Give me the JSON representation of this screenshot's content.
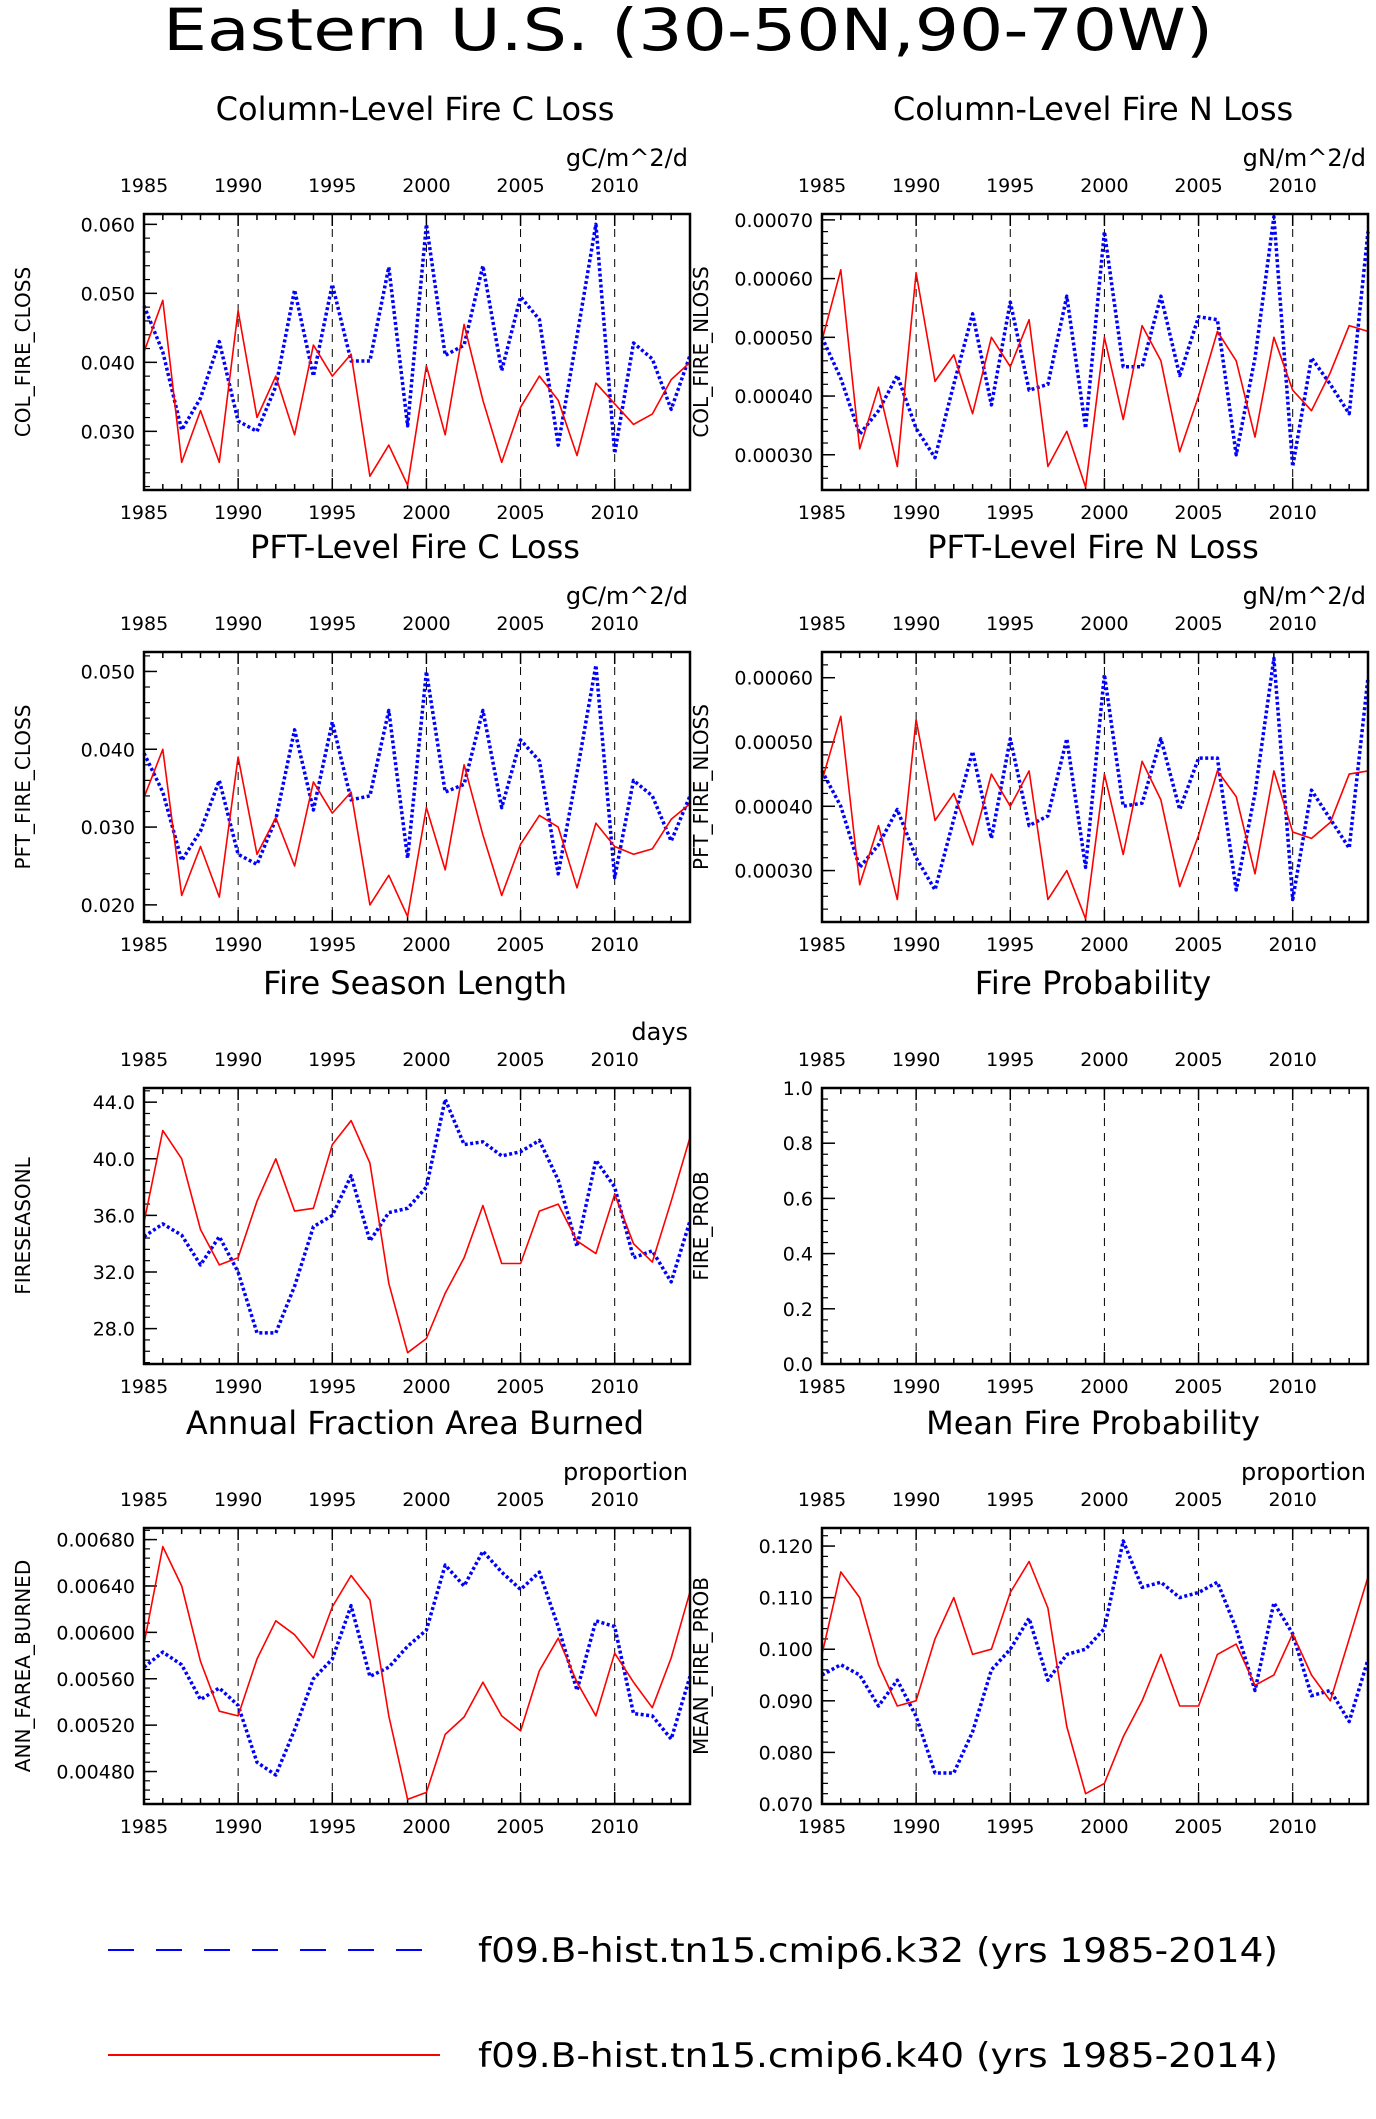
{
  "figure_title": "Eastern U.S. (30-50N,90-70W)",
  "colors": {
    "k32": "#0000ff",
    "k40": "#ff0000",
    "axis": "#000000"
  },
  "legend": [
    {
      "key": "k32",
      "label": "f09.B-hist.tn15.cmip6.k32 (yrs 1985-2014)",
      "style": "dashed"
    },
    {
      "key": "k40",
      "label": "f09.B-hist.tn15.cmip6.k40 (yrs 1985-2014)",
      "style": "solid"
    }
  ],
  "chart_data": [
    {
      "id": "col_fire_closs",
      "type": "line",
      "title": "Column-Level Fire C Loss",
      "units": "gC/m^2/d",
      "ylabel": "COL_FIRE_CLOSS",
      "xlim": [
        1985,
        2014
      ],
      "ylim": [
        0.0215,
        0.0615
      ],
      "yticks": [
        0.03,
        0.04,
        0.05,
        0.06
      ],
      "ytick_labels": [
        "0.030",
        "0.040",
        "0.050",
        "0.060"
      ],
      "xticks": [
        1985,
        1990,
        1995,
        2000,
        2005,
        2010
      ],
      "series": [
        {
          "key": "k32",
          "values": [
            0.0482,
            0.0415,
            0.0302,
            0.0348,
            0.043,
            0.0315,
            0.03,
            0.0365,
            0.0505,
            0.038,
            0.0513,
            0.0402,
            0.0402,
            0.0538,
            0.0308,
            0.06,
            0.041,
            0.0425,
            0.054,
            0.0388,
            0.0495,
            0.0462,
            0.028,
            0.0438,
            0.06,
            0.0268,
            0.0428,
            0.0405,
            0.0332,
            0.041
          ]
        },
        {
          "key": "k40",
          "values": [
            0.0415,
            0.049,
            0.0255,
            0.033,
            0.0255,
            0.0475,
            0.032,
            0.038,
            0.0295,
            0.0425,
            0.038,
            0.0412,
            0.0235,
            0.028,
            0.0222,
            0.0395,
            0.0295,
            0.0455,
            0.0345,
            0.0255,
            0.0335,
            0.038,
            0.0345,
            0.0265,
            0.037,
            0.034,
            0.031,
            0.0325,
            0.0375,
            0.04
          ]
        }
      ]
    },
    {
      "id": "col_fire_nloss",
      "type": "line",
      "title": "Column-Level Fire N Loss",
      "units": "gN/m^2/d",
      "ylabel": "COL_FIRE_NLOSS",
      "xlim": [
        1985,
        2014
      ],
      "ylim": [
        0.00024,
        0.00071
      ],
      "yticks": [
        0.0003,
        0.0004,
        0.0005,
        0.0006,
        0.0007
      ],
      "ytick_labels": [
        "0.00030",
        "0.00040",
        "0.00050",
        "0.00060",
        "0.00070"
      ],
      "xticks": [
        1985,
        1990,
        1995,
        2000,
        2005,
        2010
      ],
      "series": [
        {
          "key": "k32",
          "values": [
            0.0005,
            0.00043,
            0.000335,
            0.000375,
            0.000435,
            0.000345,
            0.000295,
            0.00042,
            0.00054,
            0.000385,
            0.00056,
            0.00041,
            0.00042,
            0.00057,
            0.000345,
            0.00068,
            0.00045,
            0.00045,
            0.00057,
            0.000435,
            0.000535,
            0.00053,
            0.0003,
            0.000465,
            0.000705,
            0.00028,
            0.000465,
            0.00042,
            0.00037,
            0.00068
          ]
        },
        {
          "key": "k40",
          "values": [
            0.000495,
            0.000615,
            0.00031,
            0.000415,
            0.00028,
            0.00061,
            0.000425,
            0.00047,
            0.00037,
            0.0005,
            0.00045,
            0.00053,
            0.00028,
            0.00034,
            0.000245,
            0.0005,
            0.00036,
            0.00052,
            0.00046,
            0.000305,
            0.0004,
            0.00051,
            0.00046,
            0.00033,
            0.0005,
            0.00041,
            0.000375,
            0.00044,
            0.00052,
            0.00051
          ]
        }
      ]
    },
    {
      "id": "pft_fire_closs",
      "type": "line",
      "title": "PFT-Level Fire C Loss",
      "units": "gC/m^2/d",
      "ylabel": "PFT_FIRE_CLOSS",
      "xlim": [
        1985,
        2014
      ],
      "ylim": [
        0.0178,
        0.0525
      ],
      "yticks": [
        0.02,
        0.03,
        0.04,
        0.05
      ],
      "ytick_labels": [
        "0.020",
        "0.030",
        "0.040",
        "0.050"
      ],
      "xticks": [
        1985,
        1990,
        1995,
        2000,
        2005,
        2010
      ],
      "series": [
        {
          "key": "k32",
          "values": [
            0.0395,
            0.0345,
            0.0257,
            0.0295,
            0.036,
            0.0265,
            0.0252,
            0.031,
            0.0425,
            0.0322,
            0.0435,
            0.0335,
            0.034,
            0.045,
            0.026,
            0.05,
            0.0345,
            0.0355,
            0.045,
            0.0325,
            0.0412,
            0.0385,
            0.024,
            0.037,
            0.0508,
            0.0235,
            0.036,
            0.034,
            0.0282,
            0.034
          ]
        },
        {
          "key": "k40",
          "values": [
            0.0338,
            0.04,
            0.0212,
            0.0275,
            0.021,
            0.039,
            0.0265,
            0.0312,
            0.025,
            0.0358,
            0.0318,
            0.0345,
            0.02,
            0.0238,
            0.0185,
            0.0325,
            0.0245,
            0.038,
            0.029,
            0.0212,
            0.0278,
            0.0315,
            0.03,
            0.0222,
            0.0305,
            0.0275,
            0.0265,
            0.0272,
            0.031,
            0.033
          ]
        }
      ]
    },
    {
      "id": "pft_fire_nloss",
      "type": "line",
      "title": "PFT-Level Fire N Loss",
      "units": "gN/m^2/d",
      "ylabel": "PFT_FIRE_NLOSS",
      "xlim": [
        1985,
        2014
      ],
      "ylim": [
        0.00022,
        0.00064
      ],
      "yticks": [
        0.0003,
        0.0004,
        0.0005,
        0.0006
      ],
      "ytick_labels": [
        "0.00030",
        "0.00040",
        "0.00050",
        "0.00060"
      ],
      "xticks": [
        1985,
        1990,
        1995,
        2000,
        2005,
        2010
      ],
      "series": [
        {
          "key": "k32",
          "values": [
            0.000455,
            0.0004,
            0.000305,
            0.00034,
            0.000395,
            0.00032,
            0.00027,
            0.00038,
            0.000485,
            0.00035,
            0.000505,
            0.00037,
            0.000385,
            0.000505,
            0.000305,
            0.000605,
            0.0004,
            0.000405,
            0.000505,
            0.000395,
            0.000475,
            0.000475,
            0.00027,
            0.00042,
            0.00063,
            0.000255,
            0.000425,
            0.00038,
            0.000335,
            0.0006
          ]
        },
        {
          "key": "k40",
          "values": [
            0.00044,
            0.00054,
            0.000278,
            0.00037,
            0.000255,
            0.000535,
            0.000378,
            0.00042,
            0.00034,
            0.00045,
            0.0004,
            0.000455,
            0.000255,
            0.0003,
            0.000225,
            0.00045,
            0.000325,
            0.00047,
            0.00041,
            0.000275,
            0.000355,
            0.000455,
            0.000415,
            0.000295,
            0.000455,
            0.00036,
            0.00035,
            0.000375,
            0.00045,
            0.000455
          ]
        }
      ]
    },
    {
      "id": "fireseasonl",
      "type": "line",
      "title": "Fire Season Length",
      "units": "days",
      "ylabel": "FIRESEASONL",
      "xlim": [
        1985,
        2014
      ],
      "ylim": [
        25.5,
        45.0
      ],
      "yticks": [
        28,
        32,
        36,
        40,
        44
      ],
      "ytick_labels": [
        "28.0",
        "32.0",
        "36.0",
        "40.0",
        "44.0"
      ],
      "xticks": [
        1985,
        1990,
        1995,
        2000,
        2005,
        2010
      ],
      "series": [
        {
          "key": "k32",
          "values": [
            34.5,
            35.4,
            34.6,
            32.5,
            34.5,
            32.0,
            27.7,
            27.7,
            31.0,
            35.2,
            36.0,
            38.8,
            34.2,
            36.2,
            36.5,
            38.0,
            44.2,
            41.0,
            41.2,
            40.2,
            40.5,
            41.3,
            38.5,
            33.8,
            39.9,
            38.0,
            33.0,
            33.5,
            31.3,
            35.6
          ]
        },
        {
          "key": "k40",
          "values": [
            35.5,
            42.0,
            40.0,
            35.0,
            32.5,
            33.0,
            37.0,
            40.0,
            36.3,
            36.5,
            41.0,
            42.7,
            39.7,
            31.2,
            26.3,
            27.3,
            30.5,
            33.0,
            36.7,
            32.6,
            32.6,
            36.3,
            36.8,
            34.2,
            33.3,
            37.5,
            34.0,
            32.7,
            37.0,
            41.5
          ]
        }
      ]
    },
    {
      "id": "fire_prob",
      "type": "line",
      "title": "Fire Probability",
      "units": "",
      "ylabel": "FIRE_PROB",
      "xlim": [
        1985,
        2014
      ],
      "ylim": [
        0.0,
        1.0
      ],
      "yticks": [
        0.0,
        0.2,
        0.4,
        0.6,
        0.8,
        1.0
      ],
      "ytick_labels": [
        "0.0",
        "0.2",
        "0.4",
        "0.6",
        "0.8",
        "1.0"
      ],
      "xticks": [
        1985,
        1990,
        1995,
        2000,
        2005,
        2010
      ],
      "series": []
    },
    {
      "id": "ann_farea_burned",
      "type": "line",
      "title": "Annual Fraction Area Burned",
      "units": "proportion",
      "ylabel": "ANN_FAREA_BURNED",
      "xlim": [
        1985,
        2014
      ],
      "ylim": [
        0.00452,
        0.0069
      ],
      "yticks": [
        0.0048,
        0.0052,
        0.0056,
        0.006,
        0.0064,
        0.0068
      ],
      "ytick_labels": [
        "0.00480",
        "0.00520",
        "0.00560",
        "0.00600",
        "0.00640",
        "0.00680"
      ],
      "xticks": [
        1985,
        1990,
        1995,
        2000,
        2005,
        2010
      ],
      "series": [
        {
          "key": "k32",
          "values": [
            0.0057,
            0.00583,
            0.00572,
            0.00542,
            0.00552,
            0.00537,
            0.00488,
            0.00477,
            0.00516,
            0.0056,
            0.00577,
            0.00623,
            0.00562,
            0.0057,
            0.00588,
            0.00602,
            0.00658,
            0.0064,
            0.0067,
            0.00652,
            0.00637,
            0.00652,
            0.00605,
            0.0055,
            0.0061,
            0.00605,
            0.0053,
            0.00528,
            0.00508,
            0.00562
          ]
        },
        {
          "key": "k40",
          "values": [
            0.0059,
            0.00674,
            0.0064,
            0.00575,
            0.00532,
            0.00528,
            0.00577,
            0.0061,
            0.00598,
            0.00578,
            0.00622,
            0.00649,
            0.00628,
            0.00528,
            0.00456,
            0.00462,
            0.00512,
            0.00527,
            0.00557,
            0.00528,
            0.00515,
            0.00567,
            0.00595,
            0.00557,
            0.00528,
            0.00582,
            0.00557,
            0.00535,
            0.00578,
            0.00635
          ]
        }
      ]
    },
    {
      "id": "mean_fire_prob",
      "type": "line",
      "title": "Mean Fire Probability",
      "units": "proportion",
      "ylabel": "MEAN_FIRE_PROB",
      "xlim": [
        1985,
        2014
      ],
      "ylim": [
        0.07,
        0.1235
      ],
      "yticks": [
        0.07,
        0.08,
        0.09,
        0.1,
        0.11,
        0.12
      ],
      "ytick_labels": [
        "0.070",
        "0.080",
        "0.090",
        "0.100",
        "0.110",
        "0.120"
      ],
      "xticks": [
        1985,
        1990,
        1995,
        2000,
        2005,
        2010
      ],
      "series": [
        {
          "key": "k32",
          "values": [
            0.095,
            0.097,
            0.095,
            0.089,
            0.094,
            0.087,
            0.076,
            0.076,
            0.084,
            0.096,
            0.1,
            0.106,
            0.094,
            0.099,
            0.1,
            0.104,
            0.121,
            0.112,
            0.113,
            0.11,
            0.111,
            0.113,
            0.104,
            0.092,
            0.109,
            0.103,
            0.091,
            0.092,
            0.086,
            0.098
          ]
        },
        {
          "key": "k40",
          "values": [
            0.099,
            0.115,
            0.11,
            0.097,
            0.089,
            0.09,
            0.102,
            0.11,
            0.099,
            0.1,
            0.111,
            0.117,
            0.108,
            0.085,
            0.072,
            0.074,
            0.083,
            0.09,
            0.099,
            0.089,
            0.089,
            0.099,
            0.101,
            0.093,
            0.095,
            0.103,
            0.095,
            0.09,
            0.102,
            0.114
          ]
        }
      ]
    }
  ]
}
